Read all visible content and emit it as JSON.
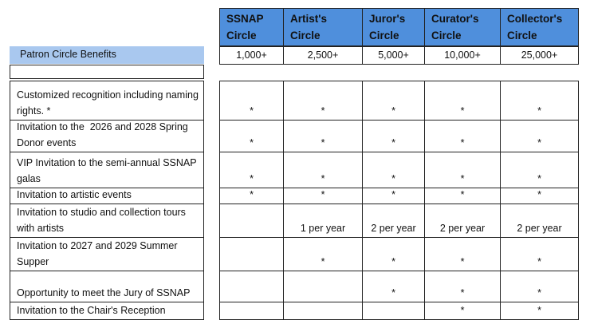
{
  "table": {
    "label": "Patron Circle Benefits",
    "columns": [
      {
        "name": "SSNAP Circle",
        "amount": "1,000+"
      },
      {
        "name": "Artist's Circle",
        "amount": "2,500+"
      },
      {
        "name": "Juror's Circle",
        "amount": "5,000+"
      },
      {
        "name": "Curator's Circle",
        "amount": "10,000+"
      },
      {
        "name": "Collector's Circle",
        "amount": "25,000+"
      }
    ],
    "rows": [
      {
        "benefit": "Customized recognition including naming rights. *",
        "cells": [
          "*",
          "*",
          "*",
          "*",
          "*"
        ]
      },
      {
        "benefit": "Invitation to the  2026 and 2028 Spring Donor events",
        "cells": [
          "*",
          "*",
          "*",
          "*",
          "*"
        ]
      },
      {
        "benefit": "VIP Invitation to the semi-annual SSNAP galas",
        "cells": [
          "*",
          "*",
          "*",
          "*",
          "*"
        ]
      },
      {
        "benefit": "Invitation to artistic events",
        "cells": [
          "*",
          "*",
          "*",
          "*",
          "*"
        ]
      },
      {
        "benefit": "Invitation to studio and collection tours with artists",
        "cells": [
          null,
          "1 per year",
          "2 per year",
          "2 per year",
          "2 per year"
        ]
      },
      {
        "benefit": "Invitation to 2027 and 2029 Summer Supper",
        "cells": [
          null,
          "*",
          "*",
          "*",
          "*"
        ]
      },
      {
        "benefit": "Opportunity to meet the Jury of SSNAP",
        "cells": [
          null,
          null,
          "*",
          "*",
          "*"
        ]
      },
      {
        "benefit": "Invitation to the Chair's Reception",
        "cells": [
          null,
          null,
          null,
          "*",
          "*"
        ]
      }
    ]
  }
}
